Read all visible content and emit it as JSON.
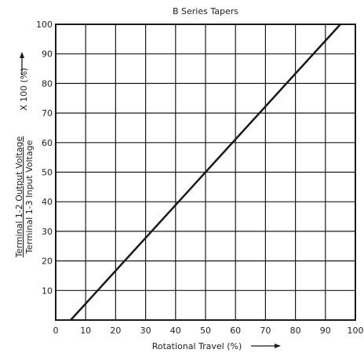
{
  "chart_data": {
    "type": "line",
    "title": "B Series Tapers",
    "xlabel": "Rotational Travel (%)",
    "ylabel": {
      "numerator": "Terminal 1-2 Output Voltage",
      "denominator": "Terminal 1-3 Input Voltage",
      "suffix": "X 100 (%)"
    },
    "xlim": [
      0,
      100
    ],
    "ylim": [
      0,
      100
    ],
    "xticks": [
      0,
      10,
      20,
      30,
      40,
      50,
      60,
      70,
      80,
      90,
      100
    ],
    "yticks": [
      10,
      20,
      30,
      40,
      50,
      60,
      70,
      80,
      90,
      100
    ],
    "grid": true,
    "series": [
      {
        "x": [
          5,
          95
        ],
        "y": [
          0,
          100
        ]
      }
    ],
    "colors": {
      "line": "#1a1a1a",
      "grid": "#1a1a1a"
    }
  }
}
